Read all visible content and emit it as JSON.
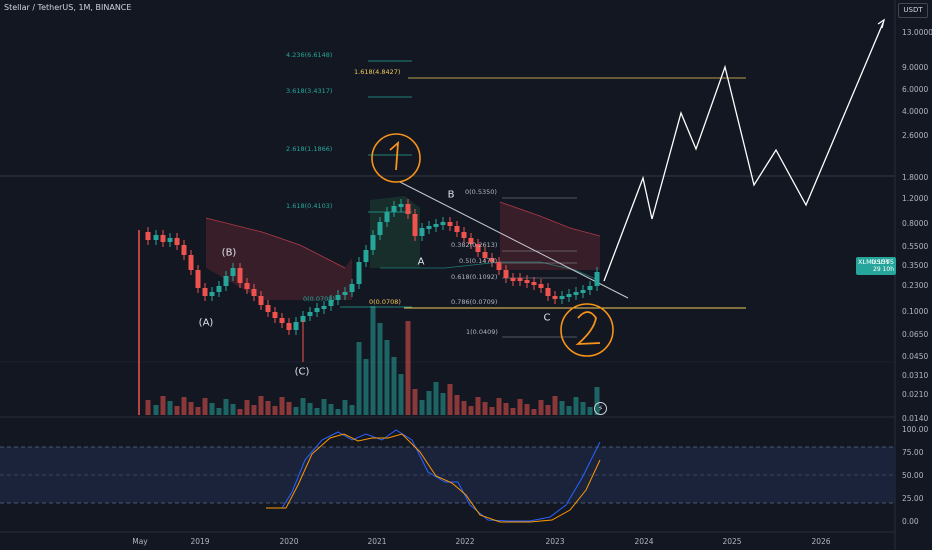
{
  "header": {
    "title": "Stellar / TetherUS, 1M, BINANCE"
  },
  "currency_button": "USDT",
  "price_tag": {
    "symbol": "XLMUSDT",
    "price": "0.1595",
    "countdown": "29 10h"
  },
  "y_axis_labels": [
    "13.0000",
    "9.0000",
    "6.0000",
    "4.0000",
    "2.6000",
    "1.8000",
    "1.2000",
    "0.8000",
    "0.5500",
    "0.3500",
    "0.2300",
    "0.1595",
    "0.1000",
    "0.0650",
    "0.0450",
    "0.0310",
    "0.0210",
    "0.0140"
  ],
  "y_axis_values": [
    13.0,
    9.0,
    6.0,
    4.0,
    2.6,
    1.8,
    1.2,
    0.8,
    0.55,
    0.35,
    0.23,
    0.1595,
    0.1,
    0.065,
    0.045,
    0.031,
    0.021,
    0.014
  ],
  "osc_axis_labels": [
    "100.00",
    "75.00",
    "50.00",
    "25.00",
    "0.00"
  ],
  "osc_axis_values": [
    100,
    75,
    50,
    25,
    0
  ],
  "x_axis_labels": [
    "May",
    "2019",
    "2020",
    "2021",
    "2022",
    "2023",
    "2024",
    "2025",
    "2026"
  ],
  "fib_levels": [
    {
      "label": "4.236(6.6148)",
      "color": "#26a69a"
    },
    {
      "label": "1.618(4.8427)",
      "color": "#f0c95a"
    },
    {
      "label": "3.618(3.4317)",
      "color": "#26a69a"
    },
    {
      "label": "2.618(1.1866)",
      "color": "#26a69a"
    },
    {
      "label": "1.618(0.4103)",
      "color": "#26a69a"
    },
    {
      "label": "0(0.0708)",
      "color": "#26a69a"
    },
    {
      "label": "0(0.0708)",
      "color": "#f0c95a"
    },
    {
      "label": "0(0.5350)",
      "color": "#b2b5be"
    },
    {
      "label": "0.382(0.2613)",
      "color": "#b2b5be"
    },
    {
      "label": "0.5(0.1473)",
      "color": "#b2b5be"
    },
    {
      "label": "0.618(0.1092)",
      "color": "#b2b5be"
    },
    {
      "label": "0.786(0.0709)",
      "color": "#b2b5be"
    },
    {
      "label": "1(0.0409)",
      "color": "#b2b5be"
    }
  ],
  "wave_labels": [
    "(A)",
    "(B)",
    "(C)",
    "A",
    "B",
    "C"
  ],
  "annotations": {
    "circle_1": "1",
    "circle_2": "2"
  },
  "colors": {
    "up": "#26a69a",
    "down": "#ef5350",
    "bg": "#131722",
    "orange": "#f7931a",
    "stoch_k": "#2962ff",
    "stoch_d": "#ff9800",
    "fib_gold": "#f0c95a"
  }
}
